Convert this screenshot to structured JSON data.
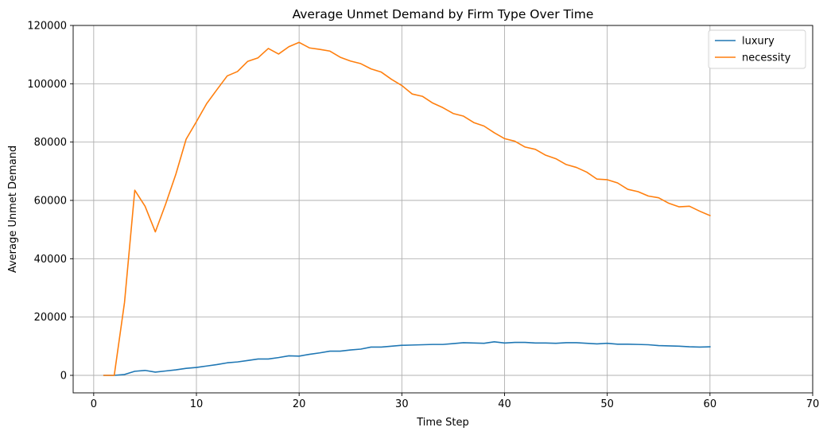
{
  "chart_data": {
    "type": "line",
    "title": "Average Unmet Demand by Firm Type Over Time",
    "xlabel": "Time Step",
    "ylabel": "Average Unmet Demand",
    "xlim": [
      -2,
      70
    ],
    "ylim": [
      -6000,
      120000
    ],
    "xticks": [
      0,
      10,
      20,
      30,
      40,
      50,
      60,
      70
    ],
    "yticks": [
      0,
      20000,
      40000,
      60000,
      80000,
      100000,
      120000
    ],
    "grid": true,
    "legend_position": "top-right",
    "x": [
      1,
      2,
      3,
      4,
      5,
      6,
      7,
      8,
      9,
      10,
      11,
      12,
      13,
      14,
      15,
      16,
      17,
      18,
      19,
      20,
      21,
      22,
      23,
      24,
      25,
      26,
      27,
      28,
      29,
      30,
      31,
      32,
      33,
      34,
      35,
      36,
      37,
      38,
      39,
      40,
      41,
      42,
      43,
      44,
      45,
      46,
      47,
      48,
      49,
      50,
      51,
      52,
      53,
      54,
      55,
      56,
      57,
      58,
      59,
      60
    ],
    "series": [
      {
        "name": "luxury",
        "color": "#1f77b4",
        "values": [
          0,
          0,
          300,
          1400,
          1700,
          1100,
          1500,
          1900,
          2400,
          2700,
          3200,
          3700,
          4300,
          4600,
          5100,
          5600,
          5600,
          6100,
          6700,
          6600,
          7200,
          7700,
          8300,
          8300,
          8700,
          9000,
          9700,
          9700,
          10000,
          10300,
          10400,
          10500,
          10600,
          10600,
          10900,
          11200,
          11100,
          11000,
          11500,
          11100,
          11300,
          11300,
          11100,
          11100,
          11000,
          11200,
          11200,
          11000,
          10800,
          11000,
          10700,
          10700,
          10600,
          10500,
          10200,
          10100,
          10000,
          9800,
          9700,
          9800
        ]
      },
      {
        "name": "necessity",
        "color": "#ff7f0e",
        "values": [
          0,
          0,
          25000,
          63500,
          58000,
          49200,
          58700,
          69000,
          81000,
          87000,
          93200,
          98000,
          102700,
          104200,
          107700,
          108900,
          112100,
          110200,
          112700,
          114200,
          112300,
          111800,
          111200,
          109100,
          107800,
          106900,
          105100,
          104000,
          101500,
          99400,
          96500,
          95700,
          93400,
          91800,
          89800,
          88900,
          86700,
          85500,
          83200,
          81200,
          80300,
          78300,
          77500,
          75500,
          74300,
          72300,
          71300,
          69700,
          67300,
          67100,
          66000,
          63800,
          63000,
          61500,
          60900,
          59000,
          57800,
          58000,
          56300,
          54800
        ]
      }
    ]
  }
}
